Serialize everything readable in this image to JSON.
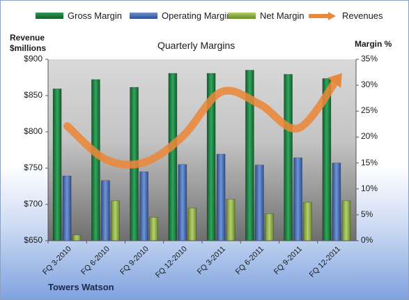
{
  "chart_data": {
    "type": "bar",
    "title": "Quarterly Margins",
    "brand": "Towers Watson",
    "left_axis_label": [
      "Revenue",
      "$millions"
    ],
    "right_axis_label": "Margin %",
    "categories": [
      "FQ 3-2010",
      "FQ 6-2010",
      "FQ 9-2010",
      "FQ 12-2010",
      "FQ 3-2011",
      "FQ 6-2011",
      "FQ 9-2011",
      "FQ 12-2011"
    ],
    "left_axis": {
      "min": 650,
      "max": 900,
      "ticks": [
        "$650",
        "$700",
        "$750",
        "$800",
        "$850",
        "$900"
      ]
    },
    "right_axis": {
      "min": 0,
      "max": 35,
      "ticks": [
        "0%",
        "5%",
        "10%",
        "15%",
        "20%",
        "25%",
        "30%",
        "35%"
      ]
    },
    "series": [
      {
        "name": "Gross Margin",
        "axis": "right",
        "color": "#1f7a3f",
        "values": [
          29.3,
          31.1,
          29.6,
          32.3,
          32.3,
          32.9,
          32.1,
          31.3
        ]
      },
      {
        "name": "Operating Margin",
        "axis": "right",
        "color": "#4a6fb3",
        "values": [
          12.5,
          11.6,
          13.3,
          14.7,
          16.7,
          14.6,
          16.0,
          15.0
        ]
      },
      {
        "name": "Net Margin",
        "axis": "right",
        "color": "#8fae45",
        "values": [
          1.1,
          7.7,
          4.5,
          6.3,
          8.0,
          5.2,
          7.4,
          7.7
        ]
      },
      {
        "name": "Revenues",
        "axis": "left",
        "type": "line",
        "color": "#e9873a",
        "values": [
          808,
          762,
          758,
          794,
          855,
          838,
          805,
          872
        ]
      }
    ],
    "grid": false,
    "legend_position": "top"
  }
}
